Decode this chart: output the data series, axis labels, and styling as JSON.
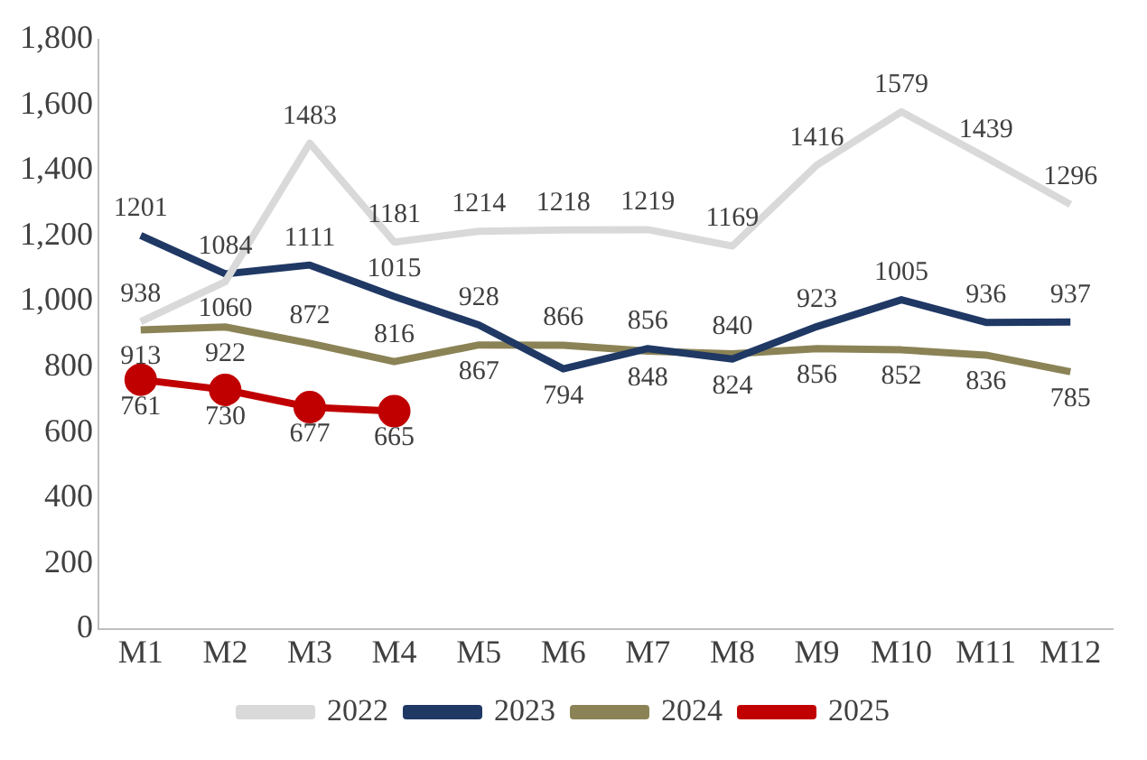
{
  "chart_data": {
    "type": "line",
    "categories": [
      "M1",
      "M2",
      "M3",
      "M4",
      "M5",
      "M6",
      "M7",
      "M8",
      "M9",
      "M10",
      "M11",
      "M12"
    ],
    "series": [
      {
        "name": "2022",
        "color": "#d9d9d9",
        "marker": "none",
        "values": [
          938,
          1060,
          1483,
          1181,
          1214,
          1218,
          1219,
          1169,
          1416,
          1579,
          1439,
          1296
        ]
      },
      {
        "name": "2023",
        "color": "#1f3864",
        "marker": "none",
        "values": [
          1201,
          1084,
          1111,
          1015,
          928,
          794,
          856,
          824,
          923,
          1005,
          936,
          937
        ]
      },
      {
        "name": "2024",
        "color": "#8b8356",
        "marker": "none",
        "values": [
          913,
          922,
          872,
          816,
          867,
          866,
          848,
          840,
          856,
          852,
          836,
          785
        ]
      },
      {
        "name": "2025",
        "color": "#c00000",
        "marker": "circle",
        "values": [
          761,
          730,
          677,
          665,
          null,
          null,
          null,
          null,
          null,
          null,
          null,
          null
        ]
      }
    ],
    "ylim": [
      0,
      1800
    ],
    "yticks": [
      0,
      200,
      400,
      600,
      800,
      {
        "value": 1000,
        "label": "1,000"
      },
      {
        "value": 1200,
        "label": "1,200"
      },
      {
        "value": 1400,
        "label": "1,400"
      },
      {
        "value": 1600,
        "label": "1,600"
      },
      {
        "value": 1800,
        "label": "1,800"
      }
    ],
    "grid": false,
    "legend": "bottom",
    "data_labels": true
  }
}
